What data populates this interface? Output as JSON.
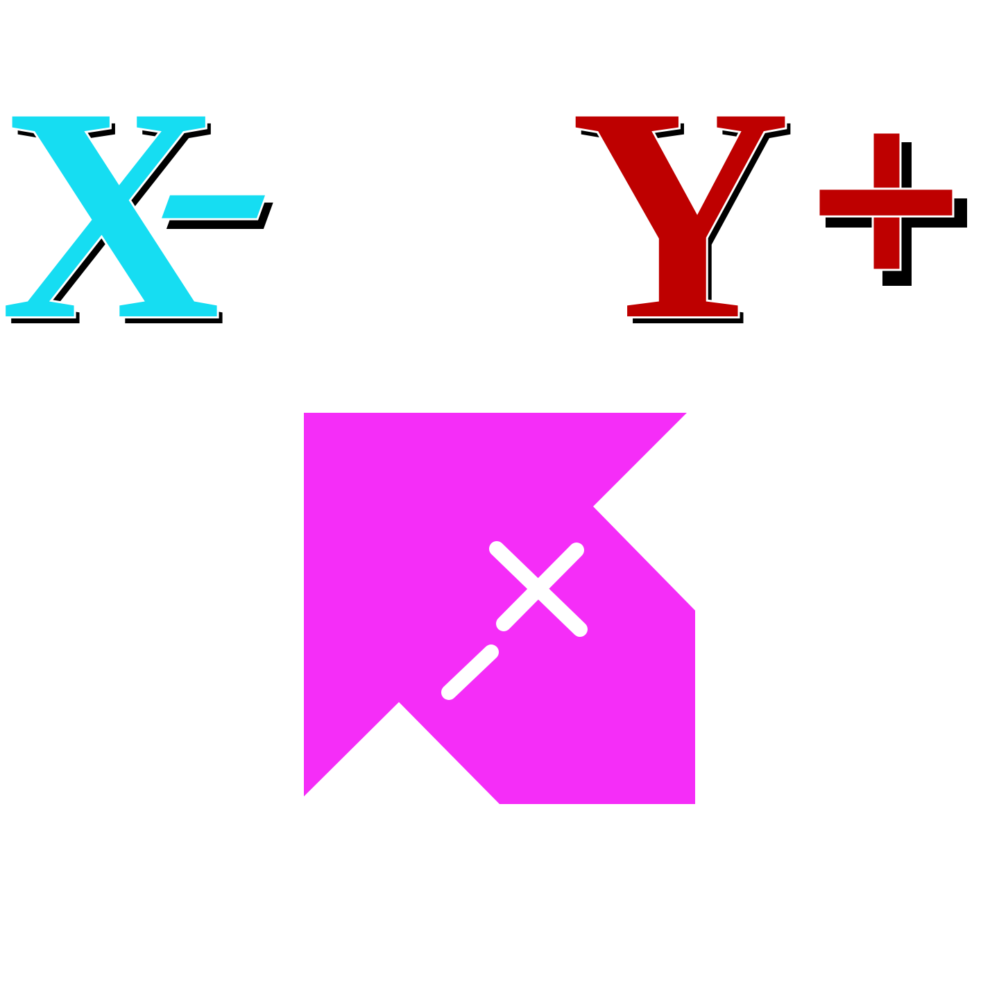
{
  "x_label": {
    "letter": "X",
    "sign": "-",
    "color": "#16DDF2",
    "shadow_color": "#000000"
  },
  "y_label": {
    "letter": "Y",
    "sign": "+",
    "color": "#BE0000",
    "shadow_color": "#000000"
  },
  "icon": {
    "name": "x-minus-y-plus-arrow-icon",
    "fill_color": "#F52DF8",
    "stroke_color": "#FFFFFF"
  }
}
